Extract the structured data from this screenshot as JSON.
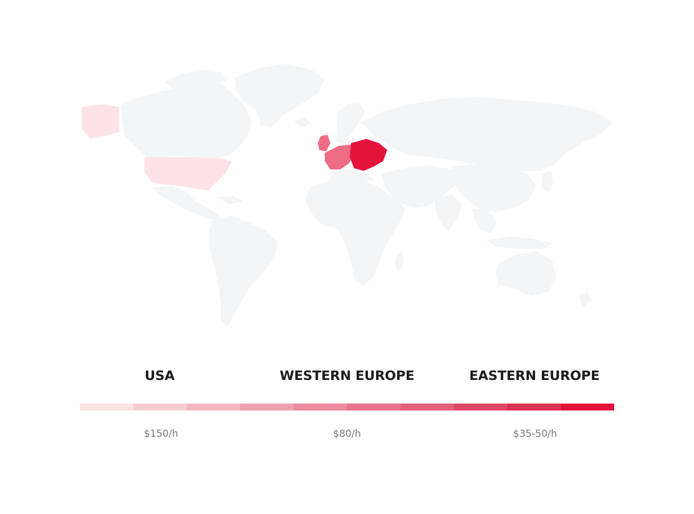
{
  "colors": {
    "land": "#f4f5f7",
    "usa": "#fde3e7",
    "western_europe": "#ee6d85",
    "eastern_europe": "#e3133c",
    "scale": [
      "#fbe2e6",
      "#f7cdd4",
      "#f4b7c2",
      "#f0a1af",
      "#ec8b9d",
      "#e8758a",
      "#e45f78",
      "#e04965",
      "#dc3353",
      "#e3133c"
    ]
  },
  "regions": [
    {
      "id": "usa",
      "label": "USA",
      "price": "$150/h"
    },
    {
      "id": "western-europe",
      "label": "WESTERN EUROPE",
      "price": "$80/h"
    },
    {
      "id": "eastern-europe",
      "label": "EASTERN EUROPE",
      "price": "$35-50/h"
    }
  ]
}
